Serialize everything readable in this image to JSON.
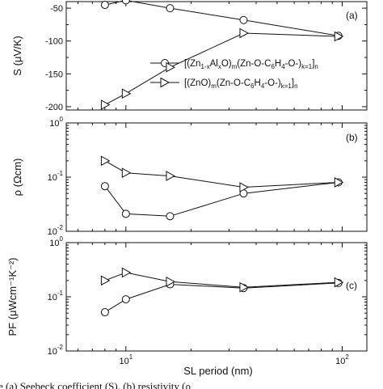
{
  "figure": {
    "xlabel": "SL period (nm)",
    "x_ticks": [
      {
        "value": 10,
        "base": "10",
        "exp": "1"
      },
      {
        "value": 100,
        "base": "10",
        "exp": "2"
      }
    ],
    "caption": "e (a) Seebeck coefficient (S), (b) resistivity (ρ"
  },
  "chart_data": [
    {
      "type": "line",
      "panel": "(a)",
      "ylabel": "S (μV/K)",
      "ylim": [
        -205,
        -40
      ],
      "y_ticks": [
        "-50",
        "-100",
        "-150",
        "-200"
      ],
      "x": [
        8,
        10,
        16,
        35,
        96
      ],
      "series": [
        {
          "name": "[(Zn1-xAlxO)m(Zn-O-C6H4-O-)k=1]n",
          "marker": "circle",
          "values": [
            -45,
            -38,
            -50,
            -68,
            -92
          ]
        },
        {
          "name": "[(ZnO)m(Zn-O-C6H4-O-)k=1]n",
          "marker": "triangle-right",
          "values": [
            -197,
            -180,
            -140,
            -88,
            -93
          ]
        }
      ]
    },
    {
      "type": "line",
      "panel": "(b)",
      "ylabel": "ρ (Ωcm)",
      "yscale": "log",
      "ylim": [
        0.01,
        1
      ],
      "y_ticks": [
        {
          "value": 0.01,
          "base": "10",
          "exp": "-2"
        },
        {
          "value": 0.1,
          "base": "10",
          "exp": "-1"
        },
        {
          "value": 1,
          "base": "10",
          "exp": "0"
        }
      ],
      "x": [
        8,
        10,
        16,
        35,
        96
      ],
      "series": [
        {
          "name": "[(Zn1-xAlxO)m(Zn-O-C6H4-O-)k=1]n",
          "marker": "circle",
          "values": [
            0.068,
            0.021,
            0.019,
            0.05,
            0.08
          ]
        },
        {
          "name": "[(ZnO)m(Zn-O-C6H4-O-)k=1]n",
          "marker": "triangle-right",
          "values": [
            0.2,
            0.12,
            0.105,
            0.065,
            0.08
          ]
        }
      ]
    },
    {
      "type": "line",
      "panel": "(c)",
      "ylabel": "PF (μWcm⁻¹K⁻²)",
      "yscale": "log",
      "ylim": [
        0.01,
        1
      ],
      "y_ticks": [
        {
          "value": 0.01,
          "base": "10",
          "exp": "-2"
        },
        {
          "value": 0.1,
          "base": "10",
          "exp": "-1"
        },
        {
          "value": 1,
          "base": "10",
          "exp": "0"
        }
      ],
      "x": [
        8,
        10,
        16,
        35,
        96
      ],
      "series": [
        {
          "name": "[(Zn1-xAlxO)m(Zn-O-C6H4-O-)k=1]n",
          "marker": "circle",
          "values": [
            0.052,
            0.09,
            0.17,
            0.145,
            0.18
          ]
        },
        {
          "name": "[(ZnO)m(Zn-O-C6H4-O-)k=1]n",
          "marker": "triangle-right",
          "values": [
            0.2,
            0.28,
            0.19,
            0.15,
            0.185
          ]
        }
      ]
    }
  ]
}
